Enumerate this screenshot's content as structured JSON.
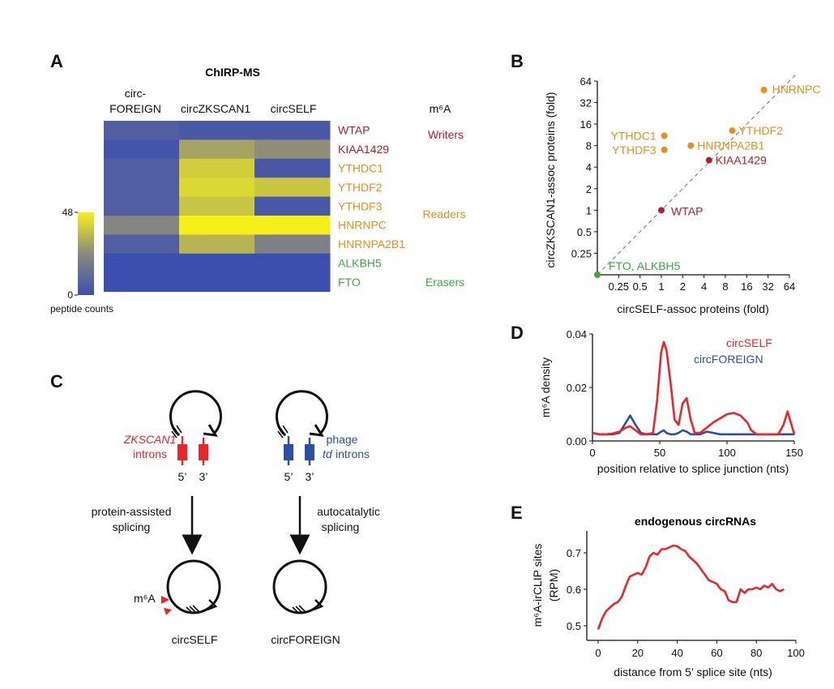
{
  "colors": {
    "writer": "#b0222a",
    "reader": "#e58f1e",
    "eraser": "#3ea845",
    "red": "#e8262c",
    "blue": "#2d4fa3",
    "heat_low": "#3d4fae",
    "heat_mid": "#8a8a7c",
    "heat_high": "#f6f01a"
  },
  "panelA": {
    "letter": "A",
    "title": "ChIRP-MS",
    "col_headers": [
      "circ-\nFOREIGN",
      "circZKSCAN1",
      "circSELF"
    ],
    "rows": [
      {
        "protein": "WTAP",
        "group": "writer",
        "values": [
          6,
          4,
          4
        ]
      },
      {
        "protein": "KIAA1429",
        "group": "writer",
        "values": [
          2,
          30,
          25
        ]
      },
      {
        "protein": "YTHDC1",
        "group": "reader",
        "values": [
          6,
          40,
          4
        ]
      },
      {
        "protein": "YTHDF2",
        "group": "reader",
        "values": [
          6,
          42,
          38
        ]
      },
      {
        "protein": "YTHDF3",
        "group": "reader",
        "values": [
          6,
          38,
          4
        ]
      },
      {
        "protein": "HNRNPC",
        "group": "reader",
        "values": [
          22,
          48,
          48
        ]
      },
      {
        "protein": "HNRNPA2B1",
        "group": "reader",
        "values": [
          6,
          34,
          20
        ]
      },
      {
        "protein": "ALKBH5",
        "group": "eraser",
        "values": [
          0,
          0,
          0
        ]
      },
      {
        "protein": "FTO",
        "group": "eraser",
        "values": [
          0,
          0,
          0
        ]
      }
    ],
    "m6a_header": "m⁶A",
    "groups": [
      {
        "name": "Writers",
        "key": "writer"
      },
      {
        "name": "Readers",
        "key": "reader"
      },
      {
        "name": "Erasers",
        "key": "eraser"
      }
    ],
    "scale_max_label": "48",
    "scale_min_label": "0",
    "scale_label": "peptide counts"
  },
  "panelB": {
    "letter": "B",
    "xlabel": "circSELF-assoc proteins (fold)",
    "ylabel": "circZKSCAN1-assoc proteins (fold)",
    "x_ticks": [
      "0.25",
      "0.5",
      "1",
      "2",
      "4",
      "8",
      "16",
      "32",
      "64"
    ],
    "y_ticks": [
      "0.25",
      "0.5",
      "1",
      "2",
      "4",
      "8",
      "16",
      "32",
      "64"
    ],
    "points": [
      {
        "label": "HNRNPC",
        "x": 28,
        "y": 48,
        "group": "reader"
      },
      {
        "label": "YTHDF2",
        "x": 10,
        "y": 13,
        "group": "reader"
      },
      {
        "label": "HNRNPA2B1",
        "x": 2.6,
        "y": 8,
        "group": "reader"
      },
      {
        "label": "YTHDC1",
        "x": 1.1,
        "y": 11,
        "group": "reader"
      },
      {
        "label": "YTHDF3",
        "x": 1.1,
        "y": 7,
        "group": "reader"
      },
      {
        "label": "KIAA1429",
        "x": 4.7,
        "y": 5,
        "group": "writer"
      },
      {
        "label": "WTAP",
        "x": 1,
        "y": 1,
        "group": "writer"
      },
      {
        "label": "FTO, ALKBH5",
        "x": 0.125,
        "y": 0.125,
        "group": "eraser"
      }
    ]
  },
  "panelC": {
    "letter": "C",
    "left_introns_italic": "ZKSCAN1",
    "left_introns": "introns",
    "right_phage": "phage",
    "right_td": "td",
    "right_introns": "introns",
    "five_prime": "5’",
    "three_prime": "3’",
    "left_process_1": "protein-assisted",
    "left_process_2": "splicing",
    "right_process_1": "autocatalytic",
    "right_process_2": "splicing",
    "m6a_label": "m⁶A",
    "left_product": "circSELF",
    "right_product": "circFOREIGN"
  },
  "chart_data": [
    {
      "panel": "B",
      "type": "scatter",
      "xlabel": "circSELF-assoc proteins (fold)",
      "ylabel": "circZKSCAN1-assoc proteins (fold)",
      "scale": "log2",
      "xlim": [
        0.125,
        64
      ],
      "ylim": [
        0.125,
        64
      ],
      "diagonal": true
    },
    {
      "panel": "D",
      "type": "line",
      "ylabel": "m⁶A density",
      "xlabel": "position relative to splice junction (nts)",
      "xlim": [
        0,
        150
      ],
      "ylim": [
        0,
        0.04
      ],
      "x_ticks": [
        "0",
        "50",
        "100",
        "150"
      ],
      "y_ticks": [
        "0.00",
        "0.02",
        "0.04"
      ],
      "x": [
        0,
        5,
        10,
        15,
        20,
        25,
        28,
        32,
        36,
        40,
        45,
        48,
        51,
        53,
        55,
        58,
        61,
        64,
        67,
        70,
        73,
        76,
        80,
        85,
        90,
        95,
        100,
        105,
        110,
        115,
        118,
        122,
        126,
        130,
        134,
        138,
        142,
        145,
        150
      ],
      "series": [
        {
          "name": "circSELF",
          "color": "#e8262c",
          "values": [
            0.003,
            0.0025,
            0.0025,
            0.0028,
            0.0035,
            0.005,
            0.0055,
            0.004,
            0.0025,
            0.0025,
            0.003,
            0.015,
            0.033,
            0.037,
            0.034,
            0.022,
            0.008,
            0.006,
            0.014,
            0.016,
            0.008,
            0.003,
            0.003,
            0.005,
            0.007,
            0.0085,
            0.01,
            0.0105,
            0.0095,
            0.007,
            0.004,
            0.0025,
            0.0025,
            0.0025,
            0.0025,
            0.0025,
            0.006,
            0.011,
            0.0025
          ]
        },
        {
          "name": "circFOREIGN",
          "color": "#2d4fa3",
          "values": [
            0.003,
            0.0025,
            0.0025,
            0.0025,
            0.003,
            0.007,
            0.0095,
            0.006,
            0.003,
            0.0025,
            0.0025,
            0.0025,
            0.0035,
            0.004,
            0.003,
            0.0025,
            0.0025,
            0.003,
            0.004,
            0.0035,
            0.0025,
            0.0025,
            0.0025,
            0.0035,
            0.003,
            0.0025,
            0.0025,
            0.0025,
            0.0025,
            0.0025,
            0.0025,
            0.0025,
            0.0025,
            0.0025,
            0.0025,
            0.0025,
            0.0025,
            0.0025,
            0.0025
          ]
        }
      ]
    },
    {
      "panel": "E",
      "type": "line",
      "title": "endogenous circRNAs",
      "ylabel": "m⁶A-irCLIP sites (RPM)",
      "ylabel_lines": [
        "m⁶A-irCLIP sites",
        "(RPM)"
      ],
      "xlabel": "distance from 5’ splice site (nts)",
      "xlim": [
        0,
        100
      ],
      "ylim": [
        0.46,
        0.76
      ],
      "x_ticks": [
        "0",
        "20",
        "40",
        "60",
        "80",
        "100"
      ],
      "y_ticks": [
        "0.5",
        "0.6",
        "0.7"
      ],
      "x": [
        0,
        2,
        4,
        6,
        8,
        10,
        12,
        14,
        16,
        18,
        20,
        22,
        24,
        26,
        28,
        30,
        32,
        34,
        36,
        38,
        40,
        42,
        44,
        46,
        48,
        50,
        52,
        54,
        56,
        58,
        60,
        62,
        64,
        66,
        68,
        70,
        72,
        74,
        76,
        78,
        80,
        82,
        84,
        86,
        88,
        90,
        92,
        94
      ],
      "series": [
        {
          "name": "",
          "color": "#e8262c",
          "values": [
            0.49,
            0.52,
            0.54,
            0.55,
            0.56,
            0.565,
            0.58,
            0.61,
            0.635,
            0.64,
            0.645,
            0.64,
            0.66,
            0.69,
            0.7,
            0.695,
            0.71,
            0.71,
            0.715,
            0.72,
            0.718,
            0.71,
            0.705,
            0.69,
            0.68,
            0.67,
            0.655,
            0.64,
            0.625,
            0.62,
            0.615,
            0.6,
            0.595,
            0.57,
            0.565,
            0.565,
            0.6,
            0.59,
            0.6,
            0.6,
            0.605,
            0.6,
            0.61,
            0.605,
            0.615,
            0.6,
            0.595,
            0.6
          ]
        }
      ]
    }
  ],
  "panelD": {
    "letter": "D",
    "legend": [
      "circSELF",
      "circFOREIGN"
    ]
  },
  "panelE": {
    "letter": "E"
  }
}
